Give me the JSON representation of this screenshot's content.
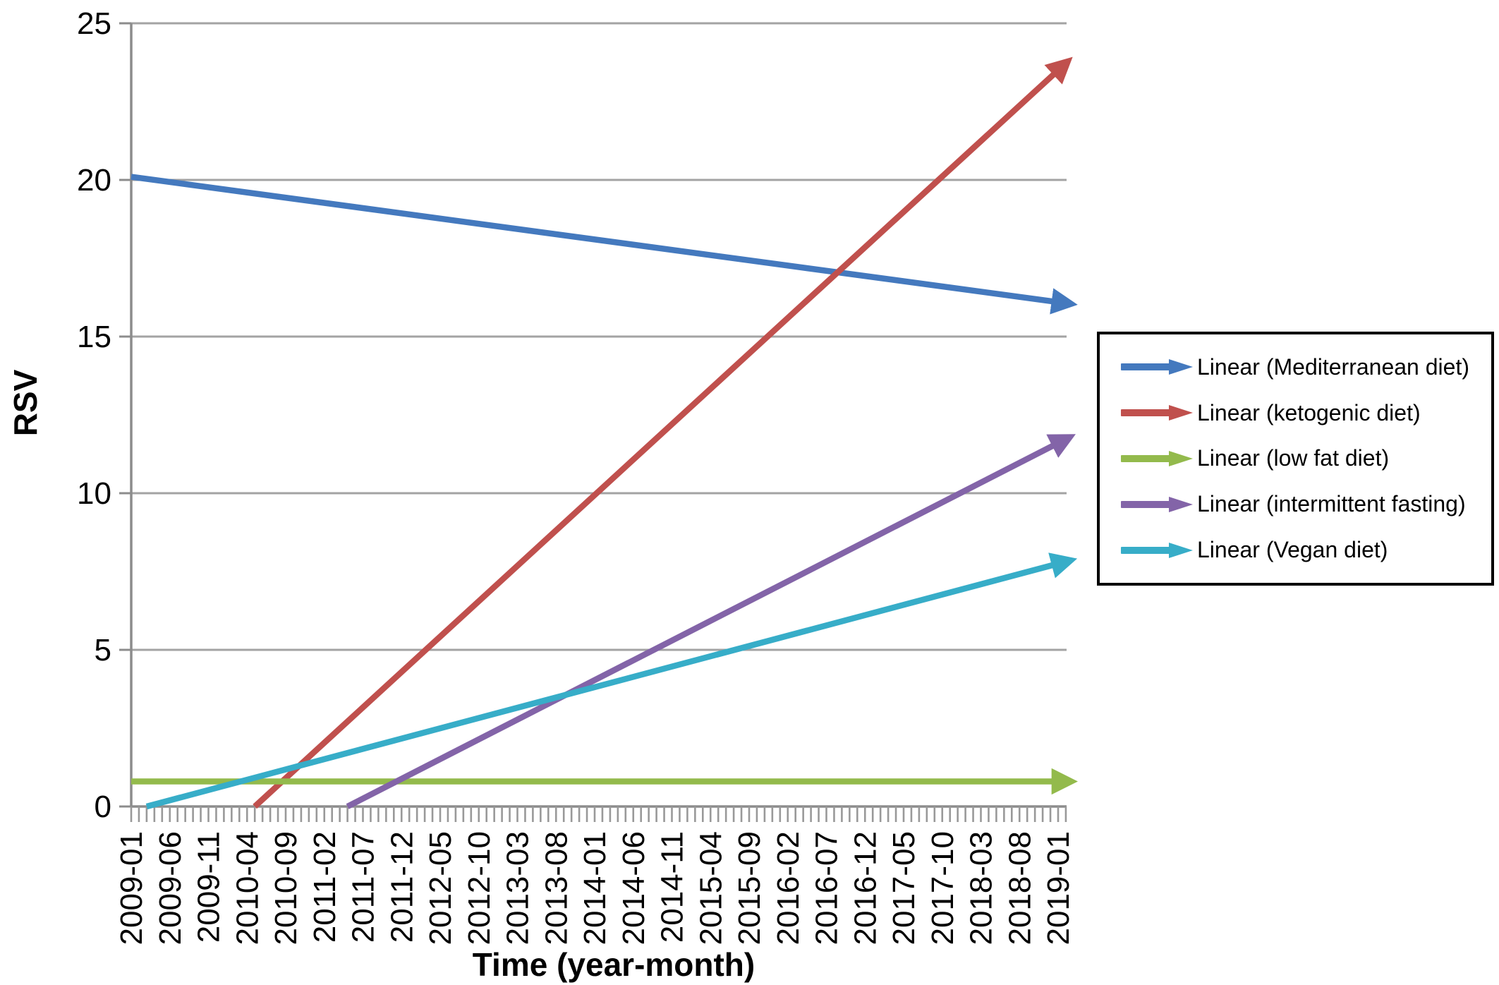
{
  "figure": {
    "y_axis_title": "RSV",
    "x_axis_title": "Time (year-month)"
  },
  "chart_data": {
    "type": "line",
    "title": "",
    "xlabel": "Time (year-month)",
    "ylabel": "RSV",
    "grid": true,
    "legend_position": "right",
    "line_style": "straight trendlines with arrowheads at right end",
    "y_axis": {
      "min": 0,
      "max": 25,
      "step": 5,
      "ticks": [
        "0",
        "5",
        "10",
        "15",
        "20",
        "25"
      ]
    },
    "x_axis": {
      "unit": "month index, 0 = 2009-01, 120 = 2019-01",
      "minor_tick_every_months": 1,
      "label_every_months": 5,
      "tick_labels": [
        "2009-01",
        "2009-06",
        "2009-11",
        "2010-04",
        "2010-09",
        "2011-02",
        "2011-07",
        "2011-12",
        "2012-05",
        "2012-10",
        "2013-03",
        "2013-08",
        "2014-01",
        "2014-06",
        "2014-11",
        "2015-04",
        "2015-09",
        "2016-02",
        "2016-07",
        "2016-12",
        "2017-05",
        "2017-10",
        "2018-03",
        "2018-08",
        "2019-01"
      ]
    },
    "series": [
      {
        "name": "Linear (Mediterranean diet)",
        "color": "#4479BE",
        "points": [
          [
            0,
            20.1
          ],
          [
            120,
            16.1
          ]
        ]
      },
      {
        "name": "Linear (ketogenic diet)",
        "color": "#C0504D",
        "points": [
          [
            16,
            0
          ],
          [
            120,
            23.5
          ]
        ]
      },
      {
        "name": "Linear (low fat diet)",
        "color": "#93BA4C",
        "points": [
          [
            0,
            0.8
          ],
          [
            120,
            0.8
          ]
        ]
      },
      {
        "name": "Linear (intermittent fasting)",
        "color": "#8364A8",
        "points": [
          [
            28,
            0
          ],
          [
            120,
            11.6
          ]
        ]
      },
      {
        "name": "Linear (Vegan diet)",
        "color": "#37ADC8",
        "points": [
          [
            2,
            0
          ],
          [
            120,
            7.75
          ]
        ]
      }
    ],
    "colors": {
      "gridline": "#A3A3A3",
      "axis": "#8C8C8C",
      "tick": "#999999",
      "text": "#000000",
      "legend_border": "#000000"
    }
  }
}
